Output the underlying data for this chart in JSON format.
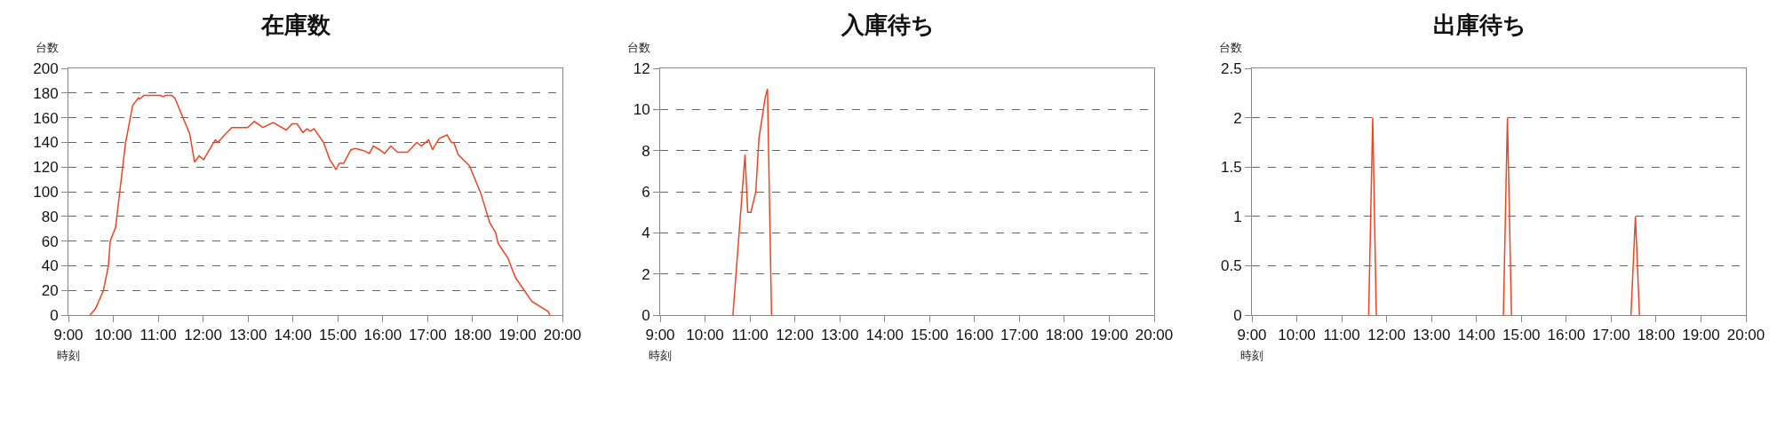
{
  "chart_data": [
    {
      "type": "line",
      "title": "在庫数",
      "ylabel": "台数",
      "xlabel": "時刻",
      "xlim": [
        9,
        20
      ],
      "ylim": [
        0,
        200
      ],
      "xticks": [
        {
          "value": 9,
          "label": "9:00"
        },
        {
          "value": 10,
          "label": "10:00"
        },
        {
          "value": 11,
          "label": "11:00"
        },
        {
          "value": 12,
          "label": "12:00"
        },
        {
          "value": 13,
          "label": "13:00"
        },
        {
          "value": 14,
          "label": "14:00"
        },
        {
          "value": 15,
          "label": "15:00"
        },
        {
          "value": 16,
          "label": "16:00"
        },
        {
          "value": 17,
          "label": "17:00"
        },
        {
          "value": 18,
          "label": "18:00"
        },
        {
          "value": 19,
          "label": "19:00"
        },
        {
          "value": 20,
          "label": "20:00"
        }
      ],
      "yticks": [
        0,
        20,
        40,
        60,
        80,
        100,
        120,
        140,
        160,
        180,
        200
      ],
      "grid": "y",
      "marker": "none",
      "line_style": "solid",
      "series": [
        {
          "color": "#ee4422",
          "x": [
            9.48,
            9.6,
            9.78,
            9.89,
            9.93,
            10.05,
            10.15,
            10.27,
            10.43,
            10.56,
            10.58,
            10.68,
            11.05,
            11.11,
            11.17,
            11.3,
            11.37,
            11.7,
            11.81,
            11.91,
            12.01,
            12.27,
            12.33,
            12.45,
            12.64,
            12.99,
            13.14,
            13.33,
            13.56,
            13.85,
            13.98,
            14.09,
            14.22,
            14.31,
            14.39,
            14.47,
            14.68,
            14.82,
            14.96,
            15.03,
            15.13,
            15.29,
            15.39,
            15.5,
            15.6,
            15.7,
            15.79,
            15.93,
            16.04,
            16.18,
            16.33,
            16.55,
            16.76,
            16.86,
            17.02,
            17.11,
            17.25,
            17.43,
            17.53,
            17.58,
            17.68,
            17.93,
            18.18,
            18.38,
            18.51,
            18.57,
            18.79,
            18.86,
            18.96,
            19.32,
            19.68,
            19.72
          ],
          "values": [
            0,
            5,
            20,
            40,
            60,
            71,
            102,
            139,
            170,
            176,
            175,
            178,
            178,
            177,
            178,
            178,
            176,
            147,
            124,
            129,
            126,
            142,
            140,
            145,
            152,
            152,
            157,
            152,
            156,
            150,
            155,
            155,
            148,
            151,
            149,
            151,
            140,
            126,
            118,
            123,
            123,
            134,
            135,
            134,
            133,
            131,
            137,
            134,
            131,
            137,
            132,
            132,
            140,
            137,
            142,
            134,
            143,
            146,
            140,
            140,
            130,
            121,
            99,
            75,
            67,
            58,
            46,
            39,
            30,
            11,
            3,
            0
          ]
        }
      ]
    },
    {
      "type": "line",
      "title": "入庫待ち",
      "ylabel": "台数",
      "xlabel": "時刻",
      "xlim": [
        9,
        20
      ],
      "ylim": [
        0,
        12
      ],
      "xticks": [
        {
          "value": 9,
          "label": "9:00"
        },
        {
          "value": 10,
          "label": "10:00"
        },
        {
          "value": 11,
          "label": "11:00"
        },
        {
          "value": 12,
          "label": "12:00"
        },
        {
          "value": 13,
          "label": "13:00"
        },
        {
          "value": 14,
          "label": "14:00"
        },
        {
          "value": 15,
          "label": "15:00"
        },
        {
          "value": 16,
          "label": "16:00"
        },
        {
          "value": 17,
          "label": "17:00"
        },
        {
          "value": 18,
          "label": "18:00"
        },
        {
          "value": 19,
          "label": "19:00"
        },
        {
          "value": 20,
          "label": "20:00"
        }
      ],
      "yticks": [
        0,
        2,
        4,
        6,
        8,
        10,
        12
      ],
      "grid": "y",
      "marker": "none",
      "line_style": "solid",
      "series": [
        {
          "color": "#ee4422",
          "x": [
            10.62,
            10.89,
            10.95,
            11.02,
            11.13,
            11.2,
            11.34,
            11.39,
            11.48
          ],
          "values": [
            0,
            7.8,
            5,
            5,
            6,
            8.6,
            10.6,
            11,
            0
          ]
        }
      ]
    },
    {
      "type": "line",
      "title": "出庫待ち",
      "ylabel": "台数",
      "xlabel": "時刻",
      "xlim": [
        9,
        20
      ],
      "ylim": [
        0,
        2.5
      ],
      "xticks": [
        {
          "value": 9,
          "label": "9:00"
        },
        {
          "value": 10,
          "label": "10:00"
        },
        {
          "value": 11,
          "label": "11:00"
        },
        {
          "value": 12,
          "label": "12:00"
        },
        {
          "value": 13,
          "label": "13:00"
        },
        {
          "value": 14,
          "label": "14:00"
        },
        {
          "value": 15,
          "label": "15:00"
        },
        {
          "value": 16,
          "label": "16:00"
        },
        {
          "value": 17,
          "label": "17:00"
        },
        {
          "value": 18,
          "label": "18:00"
        },
        {
          "value": 19,
          "label": "19:00"
        },
        {
          "value": 20,
          "label": "20:00"
        }
      ],
      "yticks": [
        0,
        0.5,
        1,
        1.5,
        2,
        2.5
      ],
      "grid": "y",
      "marker": "none",
      "line_style": "solid",
      "series": [
        {
          "color": "#ee4422",
          "x": [
            11.6,
            11.69,
            11.77,
            13,
            14.6,
            14.69,
            14.78,
            16,
            17.44,
            17.54,
            17.63
          ],
          "values": [
            0,
            2,
            0,
            null,
            0,
            2,
            0,
            null,
            0,
            1,
            0
          ]
        }
      ]
    }
  ]
}
